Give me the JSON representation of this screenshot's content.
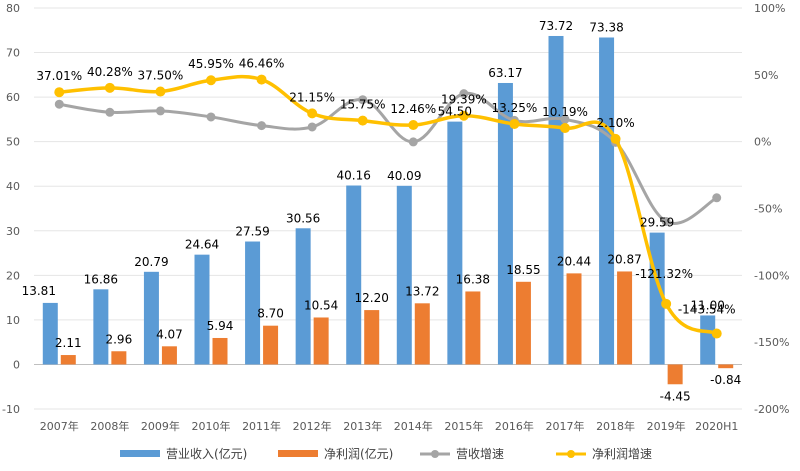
{
  "chart_data": {
    "type": "bar",
    "categories": [
      "2007年",
      "2008年",
      "2009年",
      "2010年",
      "2011年",
      "2012年",
      "2013年",
      "2014年",
      "2015年",
      "2016年",
      "2017年",
      "2018年",
      "2019年",
      "2020H1"
    ],
    "left_axis": {
      "ylim": [
        -10,
        80
      ],
      "ticks": [
        "-10",
        "0",
        "10",
        "20",
        "30",
        "40",
        "50",
        "60",
        "70",
        "80"
      ]
    },
    "right_axis": {
      "ylim": [
        -200,
        100
      ],
      "unit": "%",
      "ticks": [
        "-200%",
        "-150%",
        "-100%",
        "-50%",
        "0%",
        "50%",
        "100%"
      ]
    },
    "grid": true,
    "legend_position": "bottom",
    "series": [
      {
        "name": "营业收入(亿元)",
        "kind": "bar",
        "axis": "left",
        "color": "#5B9BD5",
        "values": [
          13.81,
          16.86,
          20.79,
          24.64,
          27.59,
          30.56,
          40.16,
          40.09,
          54.5,
          63.17,
          73.72,
          73.38,
          29.59,
          11.0
        ],
        "labels": [
          "13.81",
          "16.86",
          "20.79",
          "24.64",
          "27.59",
          "30.56",
          "40.16",
          "40.09",
          "54.50",
          "63.17",
          "73.72",
          "73.38",
          "29.59",
          "11.00"
        ]
      },
      {
        "name": "净利润(亿元)",
        "kind": "bar",
        "axis": "left",
        "color": "#ED7D31",
        "values": [
          2.11,
          2.96,
          4.07,
          5.94,
          8.7,
          10.54,
          12.2,
          13.72,
          16.38,
          18.55,
          20.44,
          20.87,
          -4.45,
          -0.84
        ],
        "labels": [
          "2.11",
          "2.96",
          "4.07",
          "5.94",
          "8.70",
          "10.54",
          "12.20",
          "13.72",
          "16.38",
          "18.55",
          "20.44",
          "20.87",
          "-4.45",
          "-0.84"
        ]
      },
      {
        "name": "营收增速",
        "kind": "line",
        "axis": "right",
        "color": "#A5A5A5",
        "values": [
          28,
          22,
          23,
          18.5,
          12,
          11,
          31.4,
          -0.2,
          35.9,
          15.9,
          16.7,
          -0.5,
          -59.7,
          -42
        ]
      },
      {
        "name": "净利润增速",
        "kind": "line",
        "axis": "right",
        "color": "#FFC000",
        "values": [
          37.01,
          40.28,
          37.5,
          45.95,
          46.46,
          21.15,
          15.75,
          12.46,
          19.39,
          13.25,
          10.19,
          2.1,
          -121.32,
          -143.54
        ],
        "labels": [
          "37.01%",
          "40.28%",
          "37.50%",
          "45.95%",
          "46.46%",
          "21.15%",
          "15.75%",
          "12.46%",
          "19.39%",
          "13.25%",
          "10.19%",
          "2.10%",
          "-121.32%",
          "-143.54%"
        ]
      }
    ]
  }
}
